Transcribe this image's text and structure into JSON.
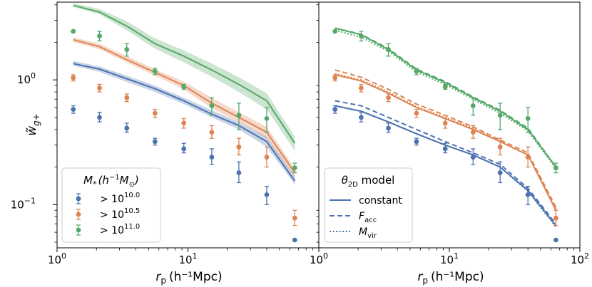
{
  "chart_data": {
    "type": "line",
    "ylabel": "w̃",
    "ylabel_sub": "g+",
    "colors": {
      "blue": "#4c72b0",
      "orange": "#dd8452",
      "green": "#55a868"
    },
    "x_points": [
      1.33,
      2.11,
      3.41,
      5.6,
      9.3,
      15.2,
      24.5,
      40.0,
      65.5
    ],
    "panels": [
      {
        "id": "left",
        "xlabel": "r",
        "xlabel_sub": "p",
        "xlabel_unit": "(h⁻¹Mpc)",
        "xlim": [
          1,
          100
        ],
        "ylim": [
          0.045,
          4.2
        ],
        "x_ticks": [
          {
            "v": 1,
            "base": "10",
            "exp": "0"
          },
          {
            "v": 10,
            "base": "10",
            "exp": "1"
          }
        ],
        "y_ticks": [
          {
            "v": 0.1,
            "base": "10",
            "exp": "−1"
          },
          {
            "v": 1.0,
            "base": "10",
            "exp": "0"
          }
        ],
        "legend": {
          "title_main": "M",
          "title_sub": "*",
          "title_rest": "(h",
          "title_exp": "−1",
          "title_end": "M",
          "title_end_sub": "⊙",
          "title_close": ")",
          "entries": [
            {
              "base": "> 10",
              "exp": "10.0",
              "color": "blue"
            },
            {
              "base": "> 10",
              "exp": "10.5",
              "color": "orange"
            },
            {
              "base": "> 10",
              "exp": "11.0",
              "color": "green"
            }
          ]
        },
        "series": [
          {
            "color": "blue",
            "points": [
              0.58,
              0.5,
              0.41,
              0.32,
              0.28,
              0.24,
              0.18,
              0.12,
              0.052
            ],
            "err_lo": [
              0.54,
              0.46,
              0.38,
              0.3,
              0.26,
              0.21,
              0.15,
              0.1,
              0.052
            ],
            "err_hi": [
              0.62,
              0.55,
              0.45,
              0.34,
              0.31,
              0.28,
              0.22,
              0.14,
              0.052
            ],
            "band": [
              1.35,
              1.22,
              1.02,
              0.85,
              0.68,
              0.53,
              0.43,
              0.32,
              0.155
            ],
            "band_lo": [
              1.3,
              1.16,
              0.96,
              0.8,
              0.64,
              0.5,
              0.4,
              0.29,
              0.145
            ],
            "band_hi": [
              1.42,
              1.28,
              1.08,
              0.9,
              0.72,
              0.57,
              0.46,
              0.35,
              0.17
            ]
          },
          {
            "color": "orange",
            "points": [
              1.04,
              0.86,
              0.72,
              0.54,
              0.45,
              0.38,
              0.29,
              0.24,
              0.078
            ],
            "err_lo": [
              0.98,
              0.8,
              0.67,
              0.5,
              0.41,
              0.34,
              0.25,
              0.2,
              0.068
            ],
            "err_hi": [
              1.1,
              0.92,
              0.77,
              0.58,
              0.49,
              0.43,
              0.34,
              0.29,
              0.09
            ],
            "band": [
              2.1,
              1.85,
              1.45,
              1.15,
              0.9,
              0.65,
              0.5,
              0.38,
              0.18
            ],
            "band_lo": [
              2.0,
              1.76,
              1.38,
              1.08,
              0.84,
              0.59,
              0.46,
              0.34,
              0.165
            ],
            "band_hi": [
              2.2,
              1.95,
              1.55,
              1.22,
              0.97,
              0.72,
              0.55,
              0.42,
              0.195
            ]
          },
          {
            "color": "green",
            "points": [
              2.45,
              2.25,
              1.75,
              1.17,
              0.88,
              0.62,
              0.52,
              0.49,
              0.197
            ],
            "err_lo": [
              2.4,
              2.05,
              1.55,
              1.1,
              0.84,
              0.52,
              0.4,
              0.38,
              0.18
            ],
            "err_hi": [
              2.5,
              2.45,
              1.95,
              1.24,
              0.92,
              0.72,
              0.65,
              0.6,
              0.215
            ],
            "band": [
              3.95,
              3.5,
              2.7,
              1.95,
              1.55,
              1.2,
              0.92,
              0.68,
              0.31
            ],
            "band_lo": [
              3.85,
              3.35,
              2.5,
              1.78,
              1.38,
              1.06,
              0.8,
              0.58,
              0.27
            ],
            "band_hi": [
              4.1,
              3.7,
              2.95,
              2.15,
              1.72,
              1.35,
              1.05,
              0.78,
              0.35
            ]
          }
        ]
      },
      {
        "id": "right",
        "xlabel": "r",
        "xlabel_sub": "p",
        "xlabel_unit": "(h⁻¹Mpc)",
        "xlim": [
          1,
          100
        ],
        "ylim": [
          0.045,
          4.2
        ],
        "x_ticks": [
          {
            "v": 1,
            "base": "10",
            "exp": "0"
          },
          {
            "v": 10,
            "base": "10",
            "exp": "1"
          },
          {
            "v": 100,
            "base": "10",
            "exp": "2"
          }
        ],
        "y_ticks": [],
        "legend": {
          "title_main": "θ",
          "title_sub": "2D",
          "title_rest": " model",
          "entries": [
            {
              "label": "constant",
              "style": "solid"
            },
            {
              "label": "F",
              "sub": "acc",
              "style": "dashed"
            },
            {
              "label": "M",
              "sub": "vir",
              "style": "dotted"
            }
          ]
        },
        "series": [
          {
            "color": "blue",
            "points": [
              0.58,
              0.5,
              0.41,
              0.32,
              0.28,
              0.24,
              0.18,
              0.12,
              0.052
            ],
            "err_lo": [
              0.54,
              0.46,
              0.38,
              0.3,
              0.26,
              0.21,
              0.15,
              0.1,
              0.052
            ],
            "err_hi": [
              0.62,
              0.55,
              0.45,
              0.34,
              0.31,
              0.28,
              0.22,
              0.14,
              0.052
            ],
            "constant": [
              0.62,
              0.56,
              0.46,
              0.37,
              0.3,
              0.25,
              0.2,
              0.13,
              0.068
            ],
            "facc": [
              0.68,
              0.62,
              0.5,
              0.4,
              0.32,
              0.26,
              0.21,
              0.135,
              0.07
            ],
            "mvir": [
              0.62,
              0.56,
              0.46,
              0.37,
              0.3,
              0.25,
              0.2,
              0.128,
              0.066
            ]
          },
          {
            "color": "orange",
            "points": [
              1.04,
              0.86,
              0.72,
              0.54,
              0.45,
              0.38,
              0.29,
              0.24,
              0.078
            ],
            "err_lo": [
              0.98,
              0.8,
              0.67,
              0.5,
              0.41,
              0.34,
              0.25,
              0.2,
              0.068
            ],
            "err_hi": [
              1.1,
              0.92,
              0.77,
              0.58,
              0.49,
              0.43,
              0.34,
              0.29,
              0.09
            ],
            "constant": [
              1.1,
              0.98,
              0.78,
              0.6,
              0.49,
              0.4,
              0.32,
              0.25,
              0.09
            ],
            "facc": [
              1.2,
              1.05,
              0.84,
              0.64,
              0.52,
              0.42,
              0.33,
              0.26,
              0.095
            ],
            "mvir": [
              1.12,
              1.0,
              0.8,
              0.61,
              0.5,
              0.41,
              0.32,
              0.25,
              0.092
            ]
          },
          {
            "color": "green",
            "points": [
              2.45,
              2.25,
              1.75,
              1.17,
              0.88,
              0.62,
              0.52,
              0.49,
              0.197
            ],
            "err_lo": [
              2.4,
              2.05,
              1.55,
              1.1,
              0.84,
              0.52,
              0.4,
              0.38,
              0.18
            ],
            "err_hi": [
              2.5,
              2.45,
              1.95,
              1.24,
              0.92,
              0.72,
              0.65,
              0.6,
              0.215
            ],
            "constant": [
              2.6,
              2.3,
              1.75,
              1.2,
              0.95,
              0.72,
              0.56,
              0.4,
              0.2
            ],
            "facc": [
              2.6,
              2.32,
              1.78,
              1.22,
              0.97,
              0.73,
              0.57,
              0.41,
              0.2
            ],
            "mvir": [
              2.5,
              2.2,
              1.7,
              1.16,
              0.92,
              0.7,
              0.54,
              0.39,
              0.195
            ]
          }
        ]
      }
    ]
  }
}
